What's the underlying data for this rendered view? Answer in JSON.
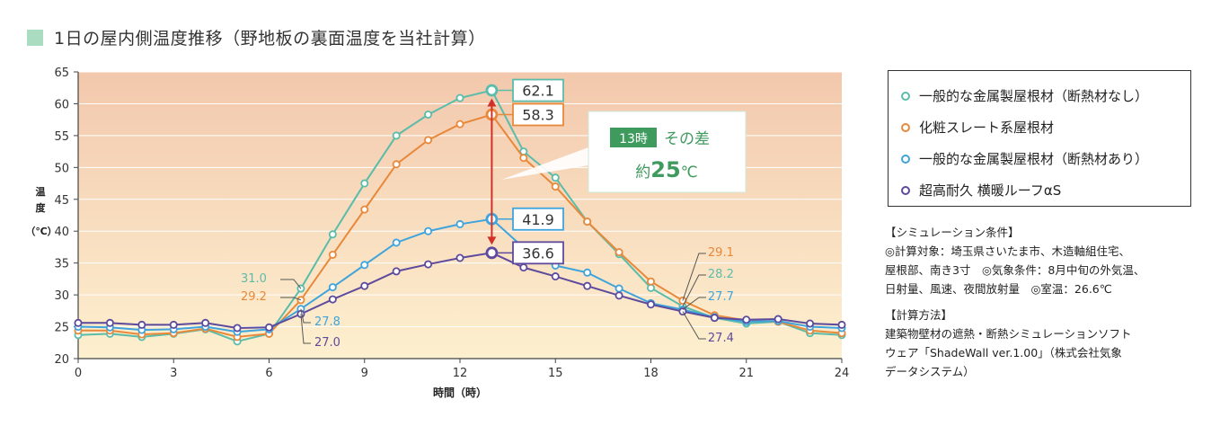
{
  "title": "1日の屋内側温度推移（野地板の裏面温度を当社計算）",
  "colors": {
    "teal": "#5bbcaa",
    "orange": "#e8883a",
    "blue": "#3fa4dc",
    "purple": "#5d4a9c",
    "arrow": "#d0322a",
    "callout_green": "#3f9a5e",
    "bg_top": "#f3c8ad",
    "bg_bottom": "#fdf0cf"
  },
  "chart_data": {
    "type": "line",
    "xlabel": "時間（時）",
    "ylabel": "温度（℃）",
    "xlim": [
      0,
      24
    ],
    "ylim": [
      20,
      65
    ],
    "xticks": [
      0,
      3,
      6,
      9,
      12,
      15,
      18,
      21,
      24
    ],
    "yticks": [
      20,
      25,
      30,
      35,
      40,
      45,
      50,
      55,
      60,
      65
    ],
    "x": [
      0,
      1,
      2,
      3,
      4,
      5,
      6,
      7,
      8,
      9,
      10,
      11,
      12,
      13,
      14,
      15,
      16,
      17,
      18,
      19,
      20,
      21,
      22,
      23,
      24
    ],
    "series": [
      {
        "name": "一般的な金属製屋根材（断熱材なし）",
        "color": "teal",
        "values": [
          23.7,
          23.9,
          23.4,
          23.9,
          24.6,
          22.7,
          23.9,
          31.0,
          39.5,
          47.5,
          55.0,
          58.3,
          60.9,
          62.1,
          52.5,
          48.4,
          41.5,
          36.4,
          31.1,
          28.2,
          26.4,
          25.5,
          25.8,
          24.0,
          23.7
        ]
      },
      {
        "name": "化粧スレート系屋根材",
        "color": "orange",
        "values": [
          24.4,
          24.4,
          23.8,
          24.0,
          24.7,
          23.4,
          23.9,
          29.2,
          36.3,
          43.4,
          50.5,
          54.3,
          56.8,
          58.3,
          51.5,
          47.0,
          41.5,
          36.7,
          32.1,
          29.1,
          26.8,
          26.0,
          25.8,
          24.4,
          24.0
        ]
      },
      {
        "name": "一般的な金属製屋根材（断熱材あり）",
        "color": "blue",
        "values": [
          25.0,
          24.9,
          24.5,
          24.6,
          25.0,
          24.2,
          24.6,
          27.8,
          31.2,
          34.7,
          38.2,
          40.0,
          41.1,
          41.9,
          37.4,
          34.6,
          33.5,
          31.0,
          28.7,
          27.7,
          26.5,
          25.8,
          25.9,
          25.0,
          24.8
        ]
      },
      {
        "name": "超高耐久 横暖ルーフαS",
        "color": "purple",
        "values": [
          25.6,
          25.6,
          25.3,
          25.3,
          25.6,
          24.8,
          24.9,
          27.0,
          29.3,
          31.4,
          33.7,
          34.8,
          35.8,
          36.6,
          34.3,
          32.9,
          31.4,
          29.9,
          28.5,
          27.4,
          26.4,
          26.1,
          26.2,
          25.5,
          25.3
        ]
      }
    ],
    "annotations": {
      "peak_labels": [
        "62.1",
        "58.3",
        "41.9",
        "36.6"
      ],
      "left_labels": [
        "31.0",
        "29.2",
        "27.8",
        "27.0"
      ],
      "right_labels": [
        "29.1",
        "28.2",
        "27.7",
        "27.4"
      ],
      "callout_badge": "13時",
      "callout_text1": "その差",
      "callout_text2_prefix": "約",
      "callout_text2_num": "25",
      "callout_text2_unit": "℃"
    }
  },
  "legend": {
    "items": [
      {
        "label": "一般的な金属製屋根材（断熱材なし）"
      },
      {
        "label": "化粧スレート系屋根材"
      },
      {
        "label": "一般的な金属製屋根材（断熱材あり）"
      },
      {
        "label": "超高耐久 横暖ルーフαS"
      }
    ]
  },
  "notes": {
    "sim_heading": "【シミュレーション条件】",
    "sim_line1": "◎計算対象：埼玉県さいたま市、木造軸組住宅、",
    "sim_line2": "屋根部、南き3寸　◎気象条件：8月中旬の外気温、",
    "sim_line3": "日射量、風速、夜間放射量　◎室温：26.6℃",
    "method_heading": "【計算方法】",
    "method_line1": "建築物壁材の遮熱・断熱シミュレーションソフト",
    "method_line2": "ウェア「ShadeWall ver.1.00」（株式会社気象",
    "method_line3": "データシステム）"
  }
}
